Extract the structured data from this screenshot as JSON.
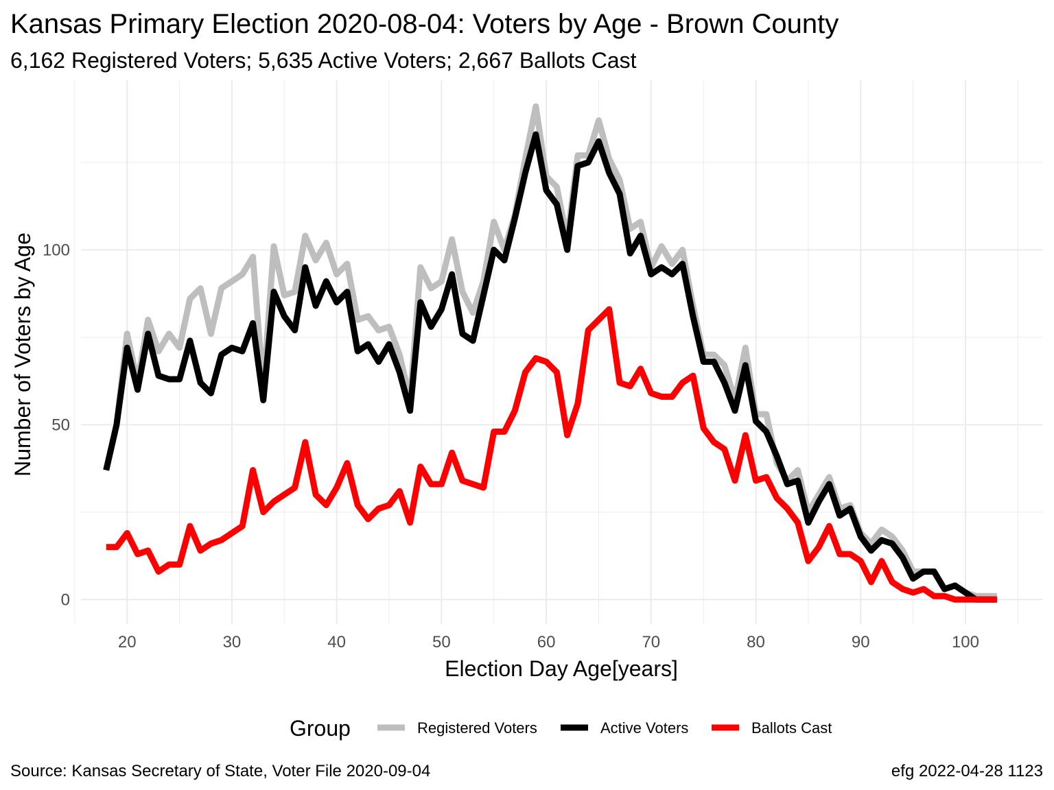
{
  "chart_data": {
    "type": "line",
    "title": "Kansas Primary Election 2020-08-04:  Voters by Age - Brown County",
    "subtitle": "6,162 Registered Voters; 5,635 Active Voters; 2,667 Ballots Cast",
    "xlabel": "Election Day Age[years]",
    "ylabel": "Number of Voters by Age",
    "xlim": [
      15.6,
      107.4
    ],
    "ylim": [
      -7.0,
      148.5
    ],
    "x_ticks": [
      20,
      30,
      40,
      50,
      60,
      70,
      80,
      90,
      100
    ],
    "y_ticks": [
      0,
      50,
      100
    ],
    "grid": true,
    "legend": {
      "title": "Group",
      "position": "bottom"
    },
    "caption_left": "Source:  Kansas Secretary of State, Voter File  2020-09-04",
    "caption_right": "efg 2022-04-28 1123",
    "x": [
      18,
      19,
      20,
      21,
      22,
      23,
      24,
      25,
      26,
      27,
      28,
      29,
      30,
      31,
      32,
      33,
      34,
      35,
      36,
      37,
      38,
      39,
      40,
      41,
      42,
      43,
      44,
      45,
      46,
      47,
      48,
      49,
      50,
      51,
      52,
      53,
      54,
      55,
      56,
      57,
      58,
      59,
      60,
      61,
      62,
      63,
      64,
      65,
      66,
      67,
      68,
      69,
      70,
      71,
      72,
      73,
      74,
      75,
      76,
      77,
      78,
      79,
      80,
      81,
      82,
      83,
      84,
      85,
      86,
      87,
      88,
      89,
      90,
      91,
      92,
      93,
      94,
      95,
      96,
      97,
      98,
      99,
      100,
      101,
      102,
      103
    ],
    "series": [
      {
        "name": "Registered Voters",
        "color": "#bebebe",
        "values": [
          37,
          50,
          76,
          62,
          80,
          71,
          76,
          72,
          86,
          89,
          76,
          89,
          91,
          93,
          98,
          60,
          101,
          87,
          88,
          104,
          97,
          102,
          93,
          96,
          80,
          81,
          77,
          78,
          70,
          57,
          95,
          89,
          91,
          103,
          88,
          82,
          91,
          108,
          100,
          110,
          126,
          141,
          121,
          118,
          103,
          127,
          127,
          137,
          126,
          120,
          106,
          108,
          95,
          101,
          96,
          100,
          84,
          70,
          70,
          67,
          57,
          72,
          53,
          53,
          39,
          34,
          37,
          25,
          30,
          35,
          26,
          27,
          19,
          16,
          20,
          18,
          14,
          8,
          8,
          8,
          3,
          4,
          2,
          1,
          1,
          1
        ]
      },
      {
        "name": "Active Voters",
        "color": "#000000",
        "values": [
          37,
          50,
          72,
          60,
          76,
          64,
          63,
          63,
          74,
          62,
          59,
          70,
          72,
          71,
          79,
          57,
          88,
          81,
          77,
          95,
          84,
          91,
          85,
          88,
          71,
          73,
          68,
          73,
          65,
          54,
          85,
          78,
          83,
          93,
          76,
          74,
          87,
          100,
          97,
          109,
          122,
          133,
          117,
          113,
          100,
          124,
          125,
          131,
          122,
          116,
          99,
          104,
          93,
          95,
          93,
          96,
          81,
          68,
          68,
          62,
          54,
          67,
          51,
          48,
          41,
          33,
          34,
          22,
          28,
          33,
          24,
          26,
          18,
          14,
          17,
          16,
          12,
          6,
          8,
          8,
          3,
          4,
          2,
          0,
          0,
          0
        ]
      },
      {
        "name": "Ballots Cast",
        "color": "#ff0000",
        "values": [
          15,
          15,
          19,
          13,
          14,
          8,
          10,
          10,
          21,
          14,
          16,
          17,
          19,
          21,
          37,
          25,
          28,
          30,
          32,
          45,
          30,
          27,
          32,
          39,
          27,
          23,
          26,
          27,
          31,
          22,
          38,
          33,
          33,
          42,
          34,
          33,
          32,
          48,
          48,
          54,
          65,
          69,
          68,
          65,
          47,
          56,
          77,
          80,
          83,
          62,
          61,
          66,
          59,
          58,
          58,
          62,
          64,
          49,
          45,
          43,
          34,
          47,
          34,
          35,
          29,
          26,
          22,
          11,
          15,
          21,
          13,
          13,
          11,
          5,
          11,
          5,
          3,
          2,
          3,
          1,
          1,
          0,
          0,
          0,
          0,
          0
        ]
      }
    ]
  }
}
